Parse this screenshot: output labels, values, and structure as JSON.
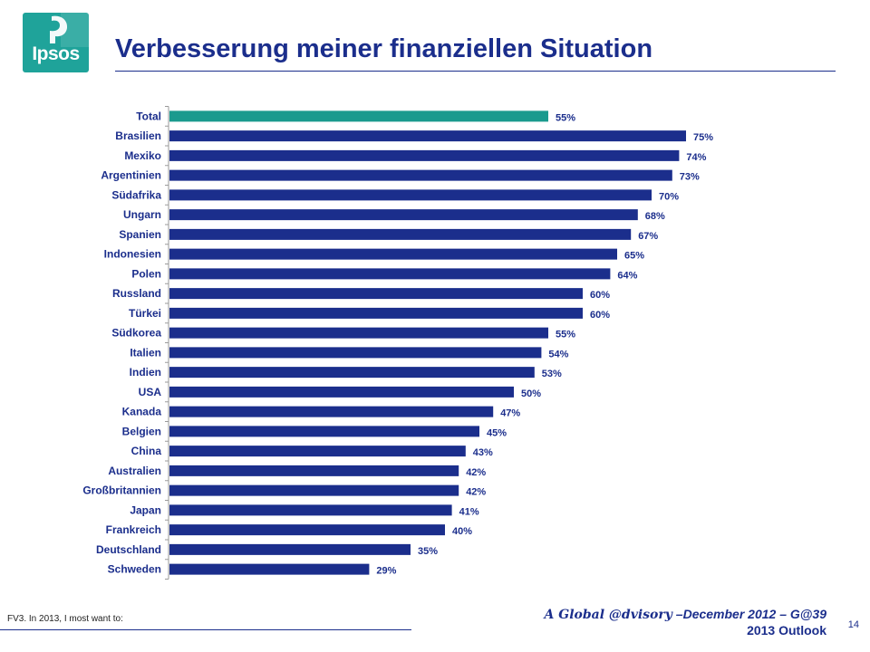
{
  "logo": {
    "text": "Ipsos"
  },
  "slide": {
    "title": "Verbesserung meiner finanziellen Situation",
    "footnote": "FV3.  In 2013, I most want to:",
    "brand": "A Global @dvisory",
    "edition": " –December 2012 – G@39",
    "subtitle": "2013 Outlook",
    "page_number": "14"
  },
  "colors": {
    "highlight": "#1a9a8e",
    "bar": "#1b2e8c",
    "title": "#1b2e8c",
    "logo": "#1fa39a"
  },
  "chart_data": {
    "type": "bar",
    "orientation": "horizontal",
    "title": "Verbesserung meiner finanziellen Situation",
    "xlabel": "",
    "ylabel": "",
    "xlim": [
      0,
      100
    ],
    "value_suffix": "%",
    "highlight_category": "Total",
    "categories": [
      "Total",
      "Brasilien",
      "Mexiko",
      "Argentinien",
      "Südafrika",
      "Ungarn",
      "Spanien",
      "Indonesien",
      "Polen",
      "Russland",
      "Türkei",
      "Südkorea",
      "Italien",
      "Indien",
      "USA",
      "Kanada",
      "Belgien",
      "China",
      "Australien",
      "Großbritannien",
      "Japan",
      "Frankreich",
      "Deutschland",
      "Schweden"
    ],
    "values": [
      55,
      75,
      74,
      73,
      70,
      68,
      67,
      65,
      64,
      60,
      60,
      55,
      54,
      53,
      50,
      47,
      45,
      43,
      42,
      42,
      41,
      40,
      35,
      29
    ],
    "labels": [
      "55%",
      "75%",
      "74%",
      "73%",
      "70%",
      "68%",
      "67%",
      "65%",
      "64%",
      "60%",
      "60%",
      "55%",
      "54%",
      "53%",
      "50%",
      "47%",
      "45%",
      "43%",
      "42%",
      "42%",
      "41%",
      "40%",
      "35%",
      "29%"
    ]
  }
}
